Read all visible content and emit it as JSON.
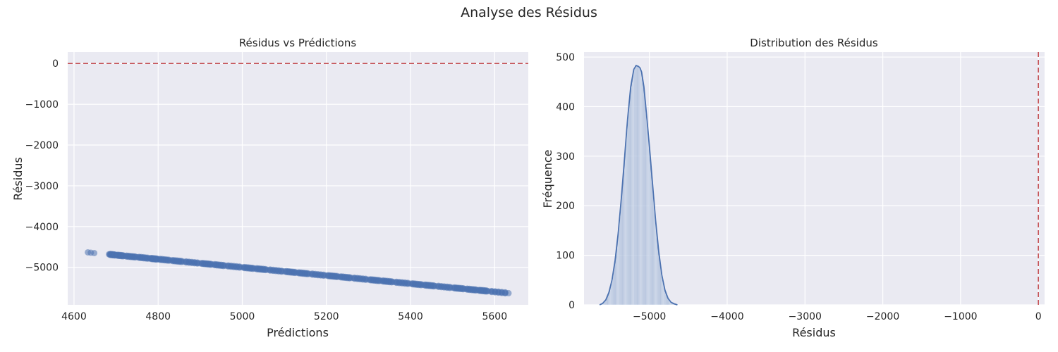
{
  "figure": {
    "suptitle": "Analyse des Résidus"
  },
  "colors": {
    "plot_background": "#EAEAF2",
    "grid": "#FFFFFF",
    "points": "#4C72B0",
    "histogram": "#4C72B0",
    "reference_line": "#C44E52"
  },
  "chart_data": [
    {
      "type": "scatter",
      "title": "Résidus vs Prédictions",
      "xlabel": "Prédictions",
      "ylabel": "Résidus",
      "xlim": [
        4585,
        5680
      ],
      "ylim": [
        -5920,
        280
      ],
      "xticks": [
        4600,
        4800,
        5000,
        5200,
        5400,
        5600
      ],
      "xtick_labels": [
        "4600",
        "4800",
        "5000",
        "5200",
        "5400",
        "5600"
      ],
      "yticks": [
        0,
        -1000,
        -2000,
        -3000,
        -4000,
        -5000
      ],
      "ytick_labels": [
        "0",
        "−1000",
        "−2000",
        "−3000",
        "−4000",
        "−5000"
      ],
      "grid": true,
      "reference_line": {
        "orientation": "horizontal",
        "value": 0,
        "style": "dashed"
      },
      "relationship": "residus = -prediction (approx.)",
      "points": [
        {
          "x": 4633,
          "y": -4633
        },
        {
          "x": 4640,
          "y": -4642
        },
        {
          "x": 4648,
          "y": -4650
        },
        {
          "x": 4683,
          "y": -4680
        },
        {
          "x": 4700,
          "y": -4700
        },
        {
          "x": 4720,
          "y": -4720
        },
        {
          "x": 4750,
          "y": -4750
        },
        {
          "x": 4780,
          "y": -4780
        },
        {
          "x": 4800,
          "y": -4800
        },
        {
          "x": 4830,
          "y": -4830
        },
        {
          "x": 4860,
          "y": -4860
        },
        {
          "x": 4900,
          "y": -4900
        },
        {
          "x": 4930,
          "y": -4930
        },
        {
          "x": 4960,
          "y": -4960
        },
        {
          "x": 5000,
          "y": -5000
        },
        {
          "x": 5030,
          "y": -5030
        },
        {
          "x": 5060,
          "y": -5060
        },
        {
          "x": 5100,
          "y": -5100
        },
        {
          "x": 5130,
          "y": -5130
        },
        {
          "x": 5160,
          "y": -5160
        },
        {
          "x": 5200,
          "y": -5200
        },
        {
          "x": 5230,
          "y": -5230
        },
        {
          "x": 5260,
          "y": -5260
        },
        {
          "x": 5300,
          "y": -5300
        },
        {
          "x": 5330,
          "y": -5330
        },
        {
          "x": 5360,
          "y": -5360
        },
        {
          "x": 5400,
          "y": -5400
        },
        {
          "x": 5430,
          "y": -5430
        },
        {
          "x": 5460,
          "y": -5460
        },
        {
          "x": 5500,
          "y": -5500
        },
        {
          "x": 5530,
          "y": -5530
        },
        {
          "x": 5560,
          "y": -5560
        },
        {
          "x": 5585,
          "y": -5585
        },
        {
          "x": 5633,
          "y": -5633
        }
      ]
    },
    {
      "type": "bar",
      "subtype": "histogram_with_kde",
      "title": "Distribution des Résidus",
      "xlabel": "Résidus",
      "ylabel": "Fréquence",
      "xlim": [
        -5840,
        80
      ],
      "ylim": [
        0,
        510
      ],
      "xticks": [
        -5000,
        -4000,
        -3000,
        -2000,
        -1000,
        0
      ],
      "xtick_labels": [
        "−5000",
        "−4000",
        "−3000",
        "−2000",
        "−1000",
        "0"
      ],
      "yticks": [
        0,
        100,
        200,
        300,
        400,
        500
      ],
      "ytick_labels": [
        "0",
        "100",
        "200",
        "300",
        "400",
        "500"
      ],
      "grid": true,
      "reference_line": {
        "orientation": "vertical",
        "value": 0,
        "style": "dashed"
      },
      "distribution": {
        "center": -5120,
        "peak_count": 483,
        "spread": 180,
        "min": -5640,
        "max": -4640
      },
      "kde": {
        "x": [
          -5640,
          -5600,
          -5560,
          -5520,
          -5480,
          -5440,
          -5400,
          -5360,
          -5320,
          -5280,
          -5240,
          -5200,
          -5170,
          -5140,
          -5120,
          -5100,
          -5070,
          -5040,
          -5000,
          -4960,
          -4920,
          -4880,
          -4840,
          -4800,
          -4760,
          -4720,
          -4680,
          -4640
        ],
        "y": [
          0,
          3,
          10,
          25,
          50,
          90,
          145,
          215,
          295,
          375,
          440,
          475,
          483,
          481,
          478,
          470,
          440,
          390,
          320,
          245,
          170,
          108,
          60,
          30,
          13,
          5,
          2,
          0
        ]
      }
    }
  ]
}
